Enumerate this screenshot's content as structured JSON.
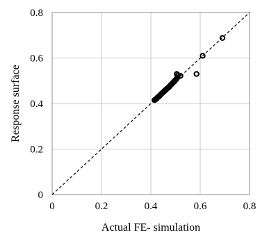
{
  "chart_data": {
    "type": "scatter",
    "title": "",
    "xlabel": "Actual FE- simulation",
    "ylabel": "Response surface",
    "xlim": [
      0,
      0.8
    ],
    "ylim": [
      0,
      0.8
    ],
    "x_ticks": [
      "0",
      "0.2",
      "0.4",
      "0.6",
      "0.8"
    ],
    "y_ticks": [
      "0",
      "0.2",
      "0.4",
      "0.6",
      "0.8"
    ],
    "grid": true,
    "reference_line": {
      "style": "dashed",
      "from": [
        0,
        0
      ],
      "to": [
        0.8,
        0.8
      ]
    },
    "series": [
      {
        "marker": "circle-open",
        "points": [
          [
            0.415,
            0.415
          ],
          [
            0.418,
            0.418
          ],
          [
            0.422,
            0.42
          ],
          [
            0.425,
            0.424
          ],
          [
            0.428,
            0.428
          ],
          [
            0.432,
            0.43
          ],
          [
            0.435,
            0.434
          ],
          [
            0.438,
            0.437
          ],
          [
            0.44,
            0.44
          ],
          [
            0.443,
            0.443
          ],
          [
            0.446,
            0.446
          ],
          [
            0.449,
            0.449
          ],
          [
            0.452,
            0.452
          ],
          [
            0.455,
            0.455
          ],
          [
            0.458,
            0.458
          ],
          [
            0.461,
            0.461
          ],
          [
            0.464,
            0.464
          ],
          [
            0.467,
            0.467
          ],
          [
            0.47,
            0.47
          ],
          [
            0.473,
            0.472
          ],
          [
            0.476,
            0.476
          ],
          [
            0.479,
            0.48
          ],
          [
            0.482,
            0.483
          ],
          [
            0.485,
            0.486
          ],
          [
            0.488,
            0.49
          ],
          [
            0.492,
            0.494
          ],
          [
            0.495,
            0.497
          ],
          [
            0.498,
            0.502
          ],
          [
            0.502,
            0.506
          ],
          [
            0.505,
            0.51
          ],
          [
            0.508,
            0.515
          ],
          [
            0.51,
            0.525
          ],
          [
            0.505,
            0.53
          ],
          [
            0.52,
            0.522
          ],
          [
            0.585,
            0.53
          ],
          [
            0.61,
            0.61
          ],
          [
            0.69,
            0.688
          ]
        ]
      }
    ]
  }
}
